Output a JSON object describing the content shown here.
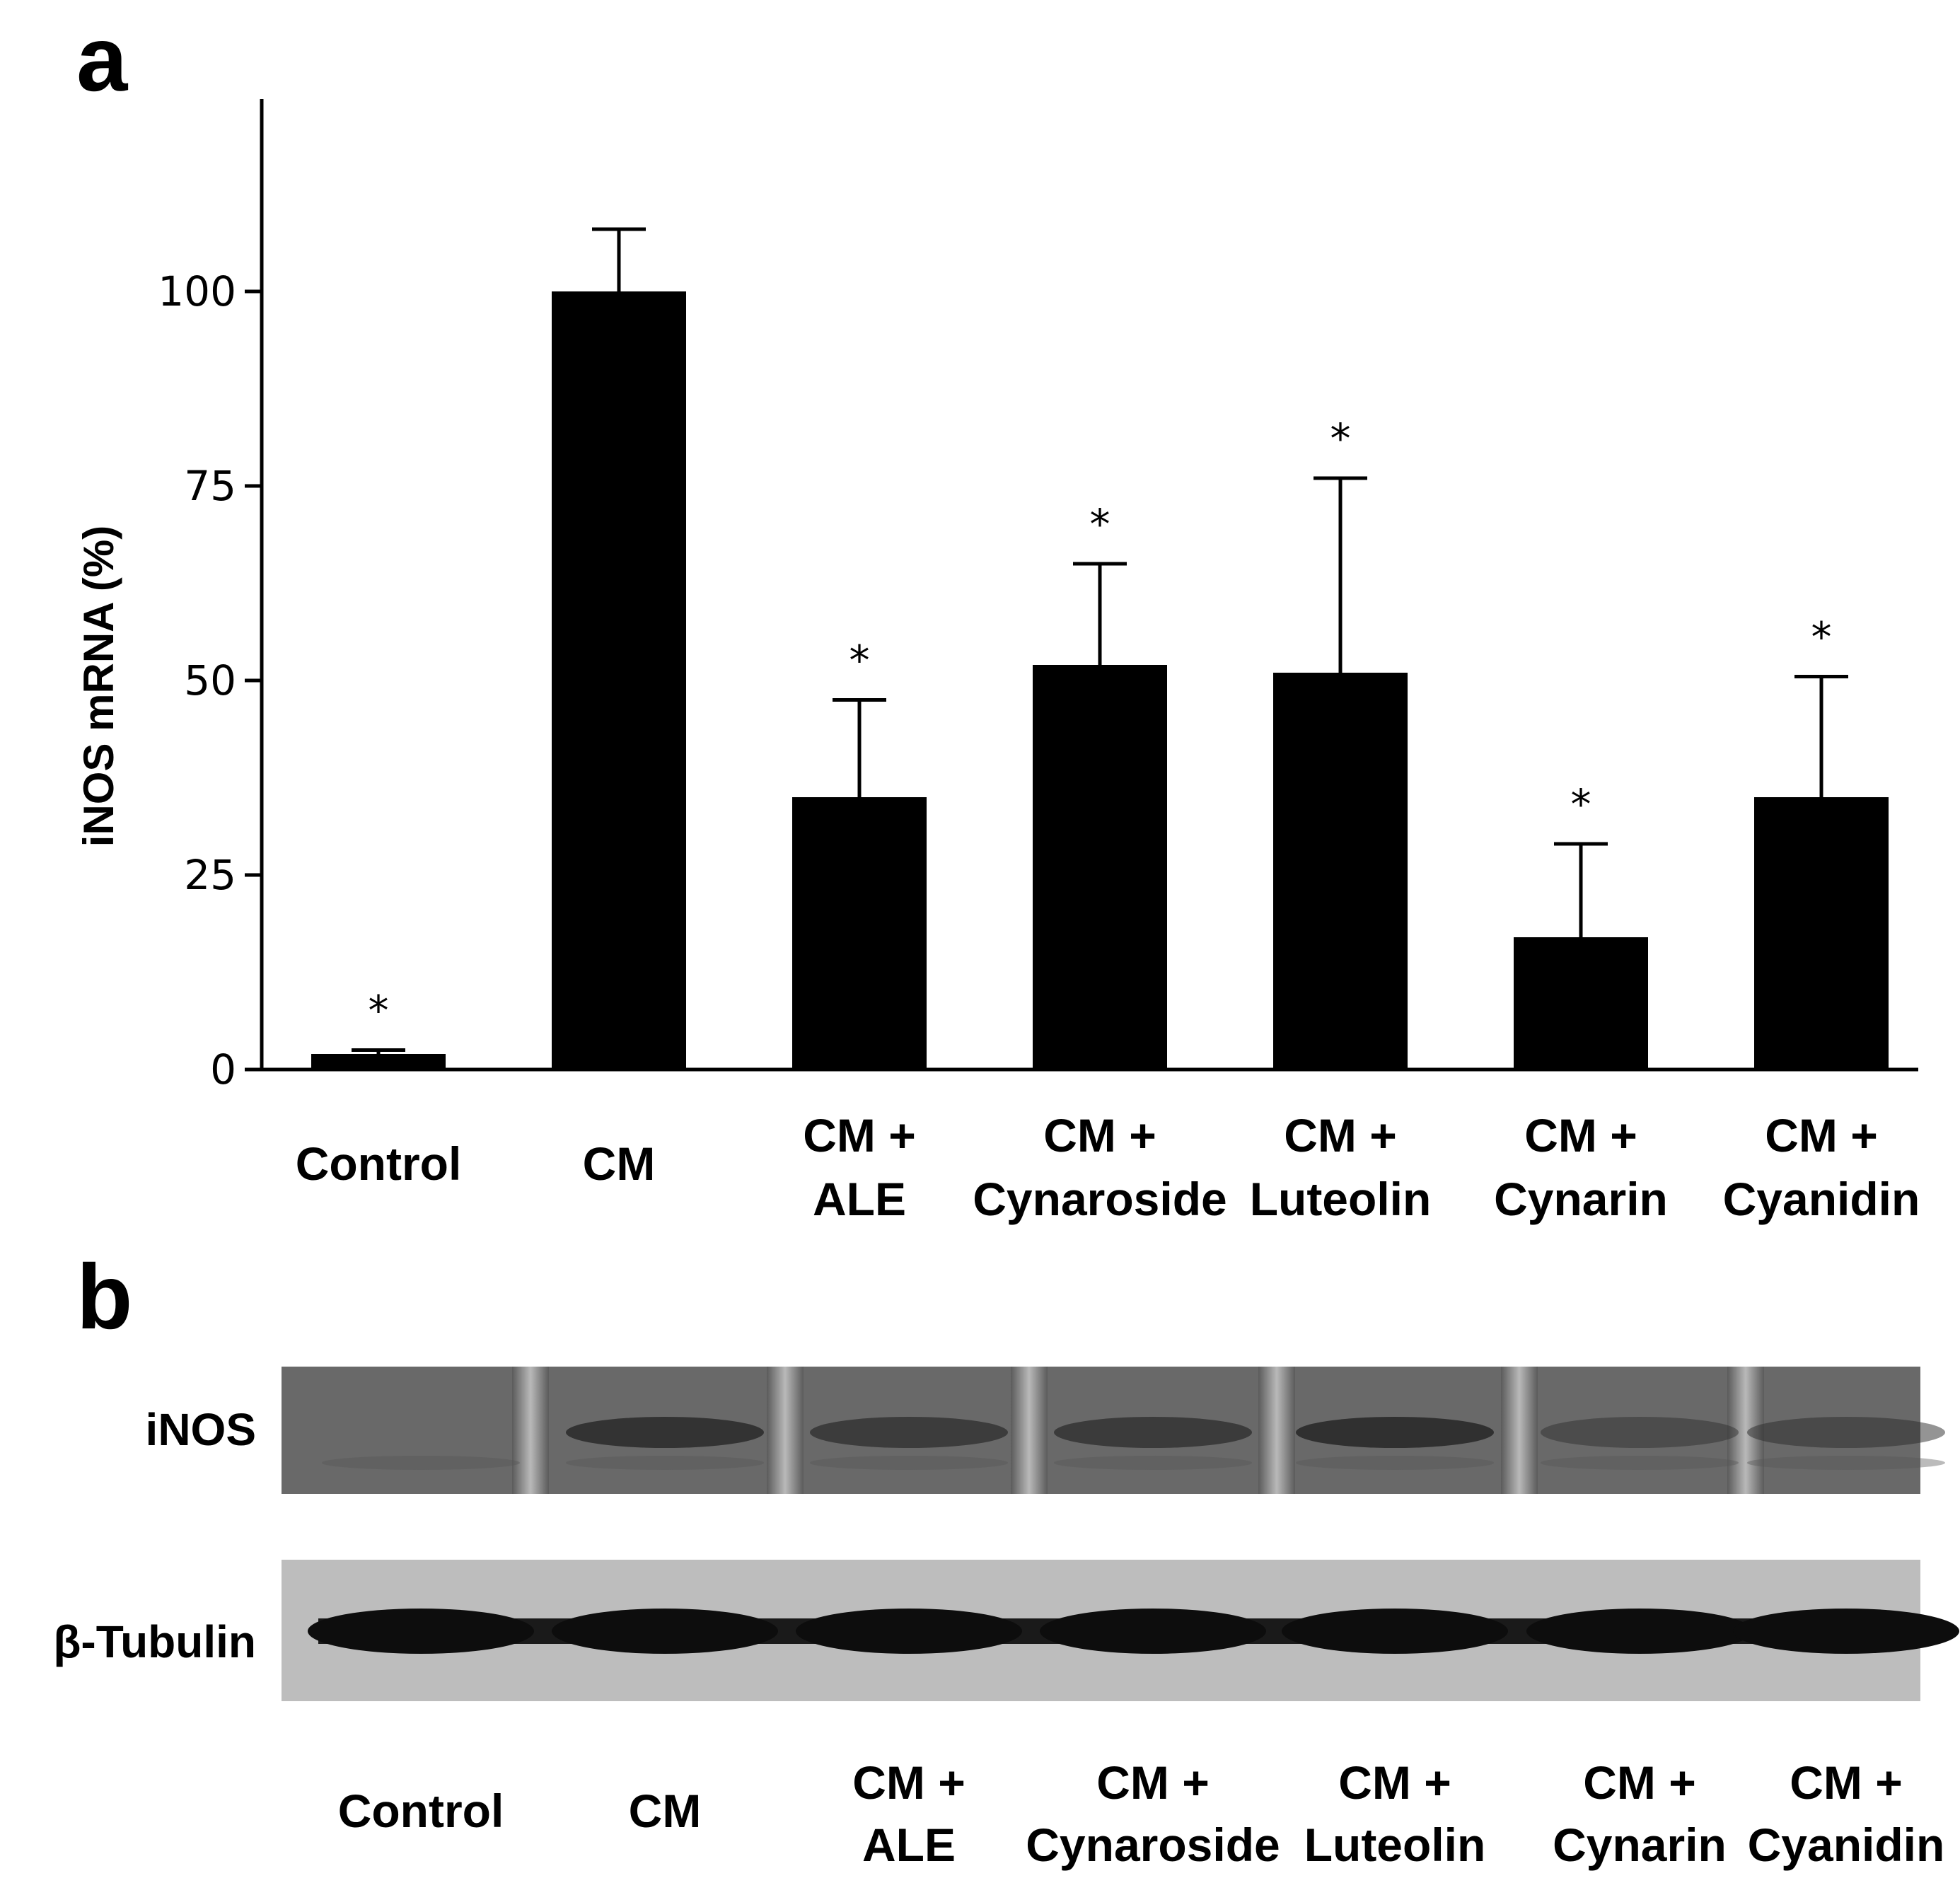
{
  "panel_a": {
    "letter": "a"
  },
  "panel_b": {
    "letter": "b",
    "row_labels": [
      "iNOS",
      "β-Tubulin"
    ],
    "lane_labels": [
      [
        "Control"
      ],
      [
        "CM"
      ],
      [
        "CM +",
        "ALE"
      ],
      [
        "CM +",
        "Cynaroside"
      ],
      [
        "CM +",
        "Luteolin"
      ],
      [
        "CM +",
        "Cynarin"
      ],
      [
        "CM +",
        "Cyanidin"
      ]
    ]
  },
  "chart_data": {
    "type": "bar",
    "title": "",
    "xlabel": "",
    "ylabel": "iNOS mRNA (%)",
    "ylim": [
      0,
      125
    ],
    "yticks": [
      0,
      25,
      50,
      75,
      100
    ],
    "grid": false,
    "bar_color": "#000000",
    "categories": [
      [
        "Control"
      ],
      [
        "CM"
      ],
      [
        "CM +",
        "ALE"
      ],
      [
        "CM +",
        "Cynaroside"
      ],
      [
        "CM +",
        "Luteolin"
      ],
      [
        "CM +",
        "Cynarin"
      ],
      [
        "CM +",
        "Cyanidin"
      ]
    ],
    "values": [
      2,
      100,
      35,
      52,
      51,
      17,
      35
    ],
    "errors": [
      0.5,
      8,
      12.5,
      13,
      25,
      12,
      15.5
    ],
    "significance": [
      "*",
      "",
      "*",
      "*",
      "*",
      "*",
      "*"
    ]
  }
}
